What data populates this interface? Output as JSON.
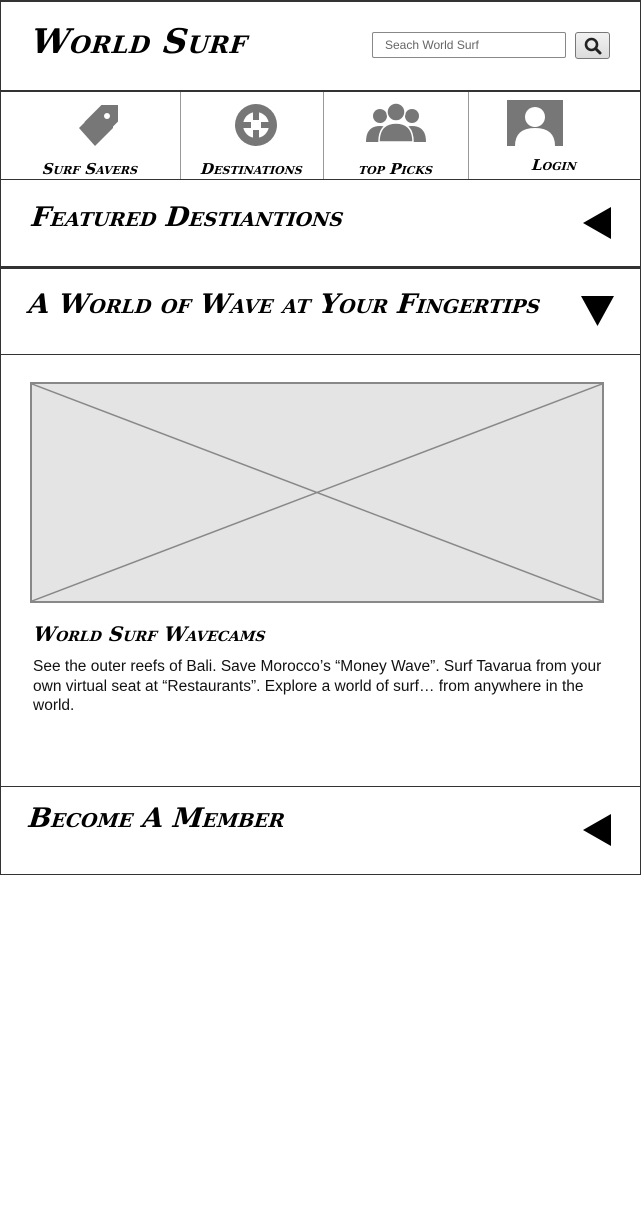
{
  "header": {
    "logo": "World Surf",
    "search": {
      "placeholder": "Seach World Surf",
      "button_icon": "search-icon"
    }
  },
  "nav": {
    "items": [
      {
        "label": "Surf Savers",
        "icon": "tag-icon"
      },
      {
        "label": "Destinations",
        "icon": "crosshair-icon"
      },
      {
        "label": "top Picks",
        "icon": "group-icon"
      },
      {
        "label": "Login",
        "icon": "user-avatar-icon"
      }
    ]
  },
  "sections": {
    "featured": {
      "title": "Featured Destiantions",
      "state": "collapsed"
    },
    "world_of_wave": {
      "title": "A World of Wave at Your Fingertips",
      "state": "expanded"
    },
    "member": {
      "title": "Become A Member",
      "state": "collapsed"
    }
  },
  "card": {
    "title": "World Surf Wavecams",
    "body": "See the outer reefs of Bali. Save Morocco’s “Money Wave”. Surf Tavarua from your own virtual seat at “Restaurants”. Explore a world of surf… from anywhere in the world."
  },
  "colors": {
    "border": "#333333",
    "icon_gray": "#777777",
    "placeholder_fill": "#e4e4e4"
  }
}
